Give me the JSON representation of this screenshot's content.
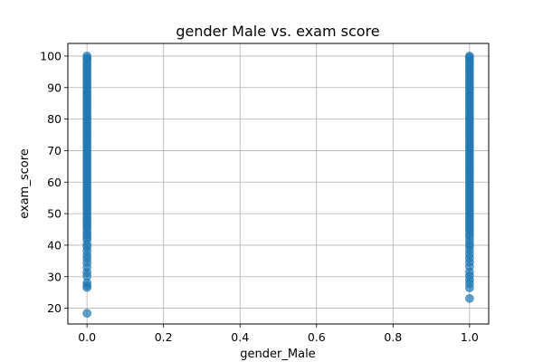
{
  "chart_data": {
    "type": "scatter",
    "title": "gender Male vs. exam score",
    "xlabel": "gender_Male",
    "ylabel": "exam_score",
    "xlim": [
      -0.05,
      1.05
    ],
    "ylim": [
      15,
      104
    ],
    "grid": true,
    "xticks": [
      0.0,
      0.2,
      0.4,
      0.6,
      0.8,
      1.0
    ],
    "xtick_labels": [
      "0.0",
      "0.2",
      "0.4",
      "0.6",
      "0.8",
      "1.0"
    ],
    "yticks": [
      20,
      30,
      40,
      50,
      60,
      70,
      80,
      90,
      100
    ],
    "ytick_labels": [
      "20",
      "30",
      "40",
      "50",
      "60",
      "70",
      "80",
      "90",
      "100"
    ],
    "point_color": "#1f77b4",
    "point_alpha": 0.7,
    "series": [
      {
        "x_value": 0.0,
        "y": [
          18.4,
          26.6,
          27.2,
          28.1,
          30.2,
          31.4,
          33.0,
          34.5,
          35.8,
          36.9,
          38.2,
          39.5,
          40.3,
          41.8,
          42.6,
          43.4,
          44.1,
          45.2,
          45.9,
          46.7,
          47.5,
          48.2,
          49.0,
          49.8,
          50.6,
          51.3,
          52.1,
          52.9,
          53.6,
          54.4,
          55.2,
          55.9,
          56.7,
          57.5,
          58.2,
          59.0,
          59.8,
          60.5,
          61.3,
          62.1,
          62.8,
          63.6,
          64.4,
          65.1,
          65.9,
          66.7,
          67.4,
          68.2,
          69.0,
          69.7,
          70.5,
          71.3,
          72.0,
          72.8,
          73.6,
          74.3,
          75.1,
          75.9,
          76.6,
          77.4,
          78.2,
          78.9,
          79.7,
          80.5,
          81.2,
          82.0,
          82.8,
          83.5,
          84.3,
          85.1,
          85.8,
          86.6,
          87.4,
          88.1,
          88.9,
          89.7,
          90.4,
          91.2,
          92.0,
          92.7,
          93.5,
          94.3,
          95.0,
          95.8,
          96.6,
          97.3,
          98.1,
          98.9,
          99.4,
          100.0
        ]
      },
      {
        "x_value": 1.0,
        "y": [
          23.1,
          26.5,
          27.8,
          29.0,
          30.3,
          31.5,
          33.2,
          34.6,
          35.9,
          37.1,
          38.4,
          39.6,
          40.5,
          41.7,
          42.8,
          43.6,
          44.5,
          45.3,
          46.1,
          46.9,
          47.7,
          48.5,
          49.3,
          50.1,
          50.9,
          51.7,
          52.5,
          53.3,
          54.1,
          54.9,
          55.7,
          56.5,
          57.3,
          58.1,
          58.9,
          59.7,
          60.5,
          61.3,
          62.1,
          62.9,
          63.7,
          64.5,
          65.3,
          66.1,
          66.9,
          67.7,
          68.5,
          69.3,
          70.1,
          70.9,
          71.7,
          72.5,
          73.3,
          74.1,
          74.9,
          75.7,
          76.5,
          77.3,
          78.1,
          78.9,
          79.7,
          80.5,
          81.3,
          82.1,
          82.9,
          83.7,
          84.5,
          85.3,
          86.1,
          86.9,
          87.7,
          88.5,
          89.3,
          90.1,
          90.9,
          91.7,
          92.5,
          93.3,
          94.1,
          94.9,
          95.7,
          96.5,
          97.3,
          98.1,
          98.9,
          99.5,
          100.0
        ]
      }
    ]
  }
}
